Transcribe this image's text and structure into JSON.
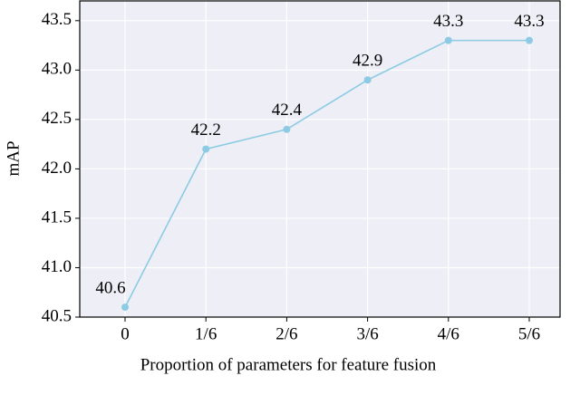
{
  "chart_data": {
    "type": "line",
    "x_label": "Proportion of parameters for feature fusion",
    "y_label": "mAP",
    "categories": [
      "0",
      "1/6",
      "2/6",
      "3/6",
      "4/6",
      "5/6"
    ],
    "values": [
      40.6,
      42.2,
      42.4,
      42.9,
      43.3,
      43.3
    ],
    "value_labels": [
      "40.6",
      "42.2",
      "42.4",
      "42.9",
      "43.3",
      "43.3"
    ],
    "color": "#8ccbe3",
    "ylim": [
      40.5,
      43.7
    ],
    "yticks": [
      {
        "value": 40.5,
        "label": "40.5"
      },
      {
        "value": 41,
        "label": "41.0"
      },
      {
        "value": 41.5,
        "label": "41.5"
      },
      {
        "value": 42,
        "label": "42.0"
      },
      {
        "value": 42.5,
        "label": "42.5"
      },
      {
        "value": 43,
        "label": "43.0"
      },
      {
        "value": 43.5,
        "label": "43.5"
      }
    ],
    "grid": true
  }
}
